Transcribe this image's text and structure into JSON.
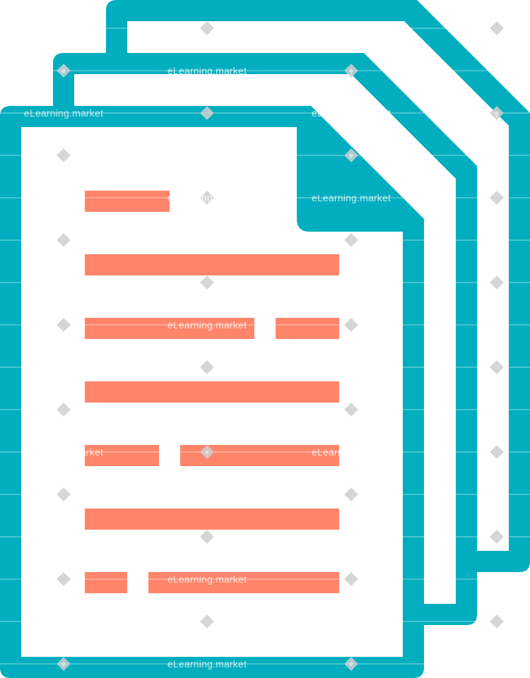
{
  "watermark": {
    "text": "eLearning.market",
    "mark": "e"
  },
  "icon": {
    "name": "documents-stack-icon",
    "colors": {
      "outline": "#00AEBF",
      "paper": "#FFFFFF",
      "lines": "#FF856A",
      "watermark": "#CFCFCF"
    }
  }
}
